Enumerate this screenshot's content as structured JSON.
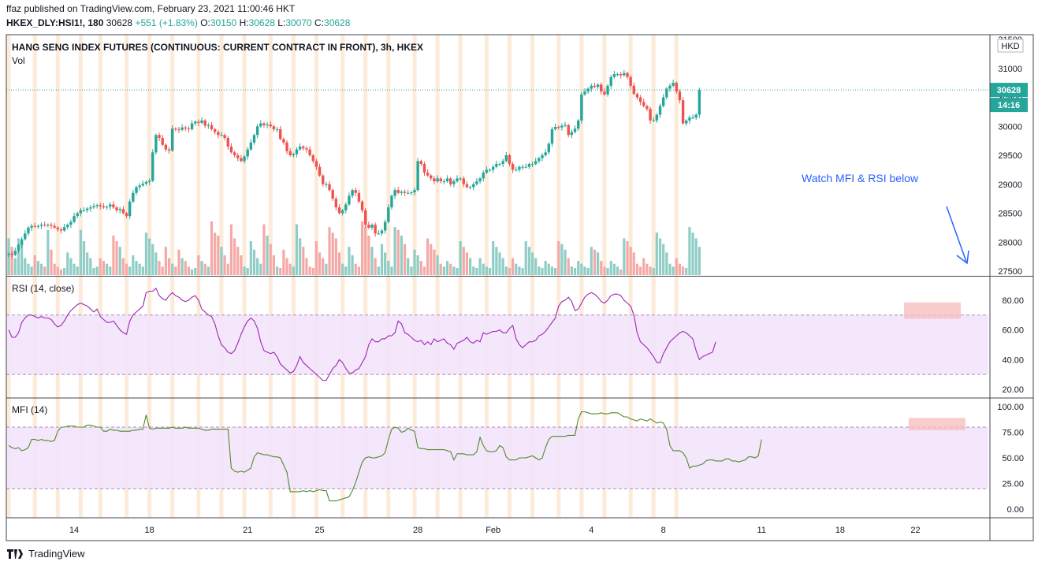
{
  "header": {
    "published_line": "ffaz published on TradingView.com, February 23, 2021 11:00:46 HKT",
    "symbol": "HKEX_DLY:HSI1!, 180",
    "last": "30628",
    "change": "+551 (+1.83%)",
    "o_label": "O:",
    "o": "30150",
    "h_label": "H:",
    "h": "30628",
    "l_label": "L:",
    "l": "30070",
    "c_label": "C:",
    "c": "30628"
  },
  "footer": {
    "brand": "TradingView"
  },
  "colors": {
    "up": "#26a69a",
    "down": "#ef5350",
    "vol_up": "#8fcdc7",
    "vol_down": "#f4a9a7",
    "rsi_line": "#9c27b0",
    "mfi_line": "#4f8a2b",
    "band_fill": "#f2e3fb",
    "session_stripe": "#fde6cf",
    "annotation": "#2962ff",
    "pink_box": "#f7bcbc"
  },
  "chart_data": [
    {
      "type": "candlestick",
      "title": "HANG SENG INDEX FUTURES (CONTINUOUS: CURRENT CONTRACT IN FRONT), 3h, HKEX",
      "volume_label": "Vol",
      "currency": "HKD",
      "ylim": [
        27500,
        31500
      ],
      "y_ticks": [
        "31500",
        "31000",
        "30500",
        "30000",
        "29500",
        "29000",
        "28500",
        "28000",
        "27500"
      ],
      "last_price_label": "30628",
      "countdown_label": "14:16",
      "x_tick_labels": [
        {
          "i": 20,
          "label": "14"
        },
        {
          "i": 43,
          "label": "18"
        },
        {
          "i": 73,
          "label": "21"
        },
        {
          "i": 95,
          "label": "25"
        },
        {
          "i": 125,
          "label": "28"
        },
        {
          "i": 148,
          "label": "Feb"
        },
        {
          "i": 178,
          "label": "4"
        },
        {
          "i": 200,
          "label": "8"
        },
        {
          "i": 230,
          "label": "11"
        },
        {
          "i": 254,
          "label": "18"
        },
        {
          "i": 277,
          "label": "22"
        }
      ],
      "annotation": "Watch MFI & RSI below",
      "closes": [
        27800,
        27780,
        27850,
        27950,
        28050,
        28150,
        28250,
        28280,
        28270,
        28280,
        28300,
        28290,
        28300,
        28280,
        28250,
        28220,
        28200,
        28260,
        28300,
        28350,
        28450,
        28500,
        28550,
        28550,
        28580,
        28600,
        28620,
        28640,
        28620,
        28600,
        28610,
        28650,
        28600,
        28550,
        28570,
        28500,
        28450,
        28700,
        28850,
        28950,
        28980,
        29010,
        29040,
        29060,
        29550,
        29850,
        29800,
        29680,
        29600,
        29580,
        29960,
        29950,
        29940,
        29980,
        29960,
        29950,
        30050,
        30080,
        30060,
        30100,
        30010,
        30020,
        29950,
        29900,
        29850,
        29850,
        29800,
        29650,
        29550,
        29500,
        29450,
        29400,
        29480,
        29600,
        29720,
        29850,
        30000,
        30050,
        30020,
        30030,
        30000,
        29950,
        29950,
        29780,
        29720,
        29570,
        29500,
        29520,
        29600,
        29650,
        29620,
        29600,
        29500,
        29400,
        29300,
        29150,
        29000,
        29000,
        28900,
        28750,
        28600,
        28500,
        28550,
        28650,
        28800,
        28900,
        28850,
        28700,
        28550,
        28300,
        28250,
        28300,
        28150,
        28150,
        28200,
        28350,
        28600,
        28800,
        28900,
        28850,
        28870,
        28850,
        28850,
        28860,
        28900,
        29400,
        29350,
        29200,
        29150,
        29100,
        29050,
        29100,
        29050,
        29050,
        29100,
        29000,
        29050,
        29100,
        29100,
        29000,
        28950,
        28950,
        29000,
        29050,
        29100,
        29200,
        29250,
        29250,
        29300,
        29350,
        29350,
        29400,
        29500,
        29350,
        29250,
        29250,
        29300,
        29300,
        29300,
        29350,
        29350,
        29400,
        29450,
        29500,
        29550,
        29700,
        29950,
        29990,
        29980,
        30010,
        30020,
        29850,
        29900,
        29960,
        30100,
        30550,
        30600,
        30650,
        30700,
        30680,
        30720,
        30600,
        30550,
        30700,
        30850,
        30900,
        30900,
        30880,
        30920,
        30850,
        30700,
        30560,
        30500,
        30420,
        30350,
        30300,
        30100,
        30100,
        30200,
        30350,
        30500,
        30650,
        30700,
        30750,
        30600,
        30450,
        30050,
        30100,
        30150,
        30150,
        30200,
        30628
      ],
      "volumes": [
        0.26,
        0.2,
        0.12,
        0.26,
        0.22,
        0.12,
        0.08,
        0.06,
        0.14,
        0.1,
        0.08,
        0.06,
        0.32,
        0.18,
        0.08,
        0.06,
        0.04,
        0.05,
        0.16,
        0.12,
        0.08,
        0.06,
        0.32,
        0.24,
        0.16,
        0.12,
        0.05,
        0.06,
        0.12,
        0.1,
        0.08,
        0.06,
        0.28,
        0.24,
        0.2,
        0.12,
        0.08,
        0.06,
        0.14,
        0.1,
        0.08,
        0.06,
        0.3,
        0.26,
        0.22,
        0.16,
        0.1,
        0.06,
        0.2,
        0.12,
        0.08,
        0.06,
        0.18,
        0.12,
        0.1,
        0.06,
        0.04,
        0.05,
        0.14,
        0.1,
        0.08,
        0.06,
        0.38,
        0.3,
        0.28,
        0.2,
        0.14,
        0.08,
        0.36,
        0.26,
        0.2,
        0.14,
        0.06,
        0.05,
        0.24,
        0.18,
        0.12,
        0.08,
        0.36,
        0.28,
        0.22,
        0.14,
        0.06,
        0.05,
        0.18,
        0.12,
        0.08,
        0.06,
        0.36,
        0.26,
        0.2,
        0.12,
        0.06,
        0.05,
        0.24,
        0.16,
        0.12,
        0.08,
        0.34,
        0.3,
        0.26,
        0.16,
        0.08,
        0.06,
        0.2,
        0.14,
        0.08,
        0.06,
        0.38,
        0.34,
        0.28,
        0.2,
        0.12,
        0.06,
        0.22,
        0.16,
        0.1,
        0.06,
        0.34,
        0.32,
        0.28,
        0.22,
        0.12,
        0.06,
        0.18,
        0.14,
        0.1,
        0.06,
        0.26,
        0.22,
        0.18,
        0.14,
        0.08,
        0.06,
        0.1,
        0.08,
        0.06,
        0.05,
        0.24,
        0.2,
        0.16,
        0.12,
        0.06,
        0.05,
        0.12,
        0.08,
        0.06,
        0.05,
        0.24,
        0.2,
        0.16,
        0.12,
        0.06,
        0.05,
        0.12,
        0.08,
        0.06,
        0.05,
        0.24,
        0.2,
        0.16,
        0.12,
        0.06,
        0.05,
        0.1,
        0.08,
        0.06,
        0.05,
        0.24,
        0.22,
        0.18,
        0.12,
        0.06,
        0.05,
        0.1,
        0.08,
        0.06,
        0.05,
        0.2,
        0.18,
        0.16,
        0.1,
        0.06,
        0.05,
        0.1,
        0.08,
        0.06,
        0.04,
        0.26,
        0.24,
        0.2,
        0.16,
        0.08,
        0.06,
        0.12,
        0.08,
        0.06,
        0.05,
        0.3,
        0.26,
        0.22,
        0.16,
        0.08,
        0.06,
        0.12,
        0.08,
        0.06,
        0.05,
        0.34,
        0.3,
        0.26,
        0.2,
        0.1,
        0.06,
        0.12,
        0.08,
        0.06,
        0.05,
        0.36,
        0.3,
        0.26,
        0.18,
        0.1,
        0.06,
        0.12,
        0.1,
        0.06,
        0.05,
        0.34,
        0.3,
        0.26,
        0.2,
        0.1,
        0.06,
        0.34
      ],
      "session_stripe_indices": [
        0,
        8,
        15,
        22,
        28,
        36,
        43,
        50,
        58,
        65,
        72,
        80,
        87,
        94,
        102,
        109,
        116,
        124,
        131,
        138,
        146,
        153,
        160,
        168,
        175,
        182,
        190,
        197,
        204,
        212,
        219,
        226,
        234,
        241,
        248,
        256,
        263,
        270,
        278,
        285
      ]
    },
    {
      "type": "line",
      "title": "RSI (14, close)",
      "ylim": [
        20,
        90
      ],
      "y_ticks": [
        "80.00",
        "60.00",
        "40.00",
        "20.00"
      ],
      "band": [
        30,
        70
      ],
      "values": [
        60,
        55,
        55,
        58,
        65,
        68,
        70,
        70,
        69,
        68,
        69,
        68,
        68,
        67,
        64,
        62,
        63,
        66,
        70,
        73,
        75,
        77,
        78,
        77,
        76,
        74,
        72,
        74,
        69,
        67,
        65,
        65,
        66,
        63,
        60,
        58,
        57,
        66,
        70,
        72,
        74,
        76,
        85,
        86,
        86,
        88,
        83,
        81,
        80,
        83,
        85,
        83,
        82,
        80,
        79,
        80,
        82,
        83,
        80,
        74,
        72,
        70,
        69,
        64,
        56,
        50,
        48,
        45,
        44,
        46,
        51,
        57,
        62,
        66,
        68,
        66,
        61,
        52,
        46,
        45,
        44,
        45,
        42,
        37,
        35,
        33,
        31,
        32,
        36,
        42,
        38,
        36,
        34,
        32,
        30,
        28,
        26,
        26,
        30,
        34,
        36,
        40,
        38,
        34,
        31,
        31,
        33,
        34,
        38,
        42,
        50,
        54,
        52,
        52,
        54,
        54,
        56,
        56,
        58,
        66,
        64,
        58,
        57,
        55,
        53,
        52,
        53,
        50,
        52,
        50,
        54,
        52,
        53,
        54,
        51,
        50,
        47,
        51,
        52,
        53,
        55,
        52,
        51,
        53,
        52,
        58,
        57,
        58,
        59,
        59,
        60,
        58,
        58,
        61,
        63,
        54,
        50,
        48,
        50,
        52,
        52,
        53,
        56,
        57,
        59,
        62,
        65,
        68,
        76,
        79,
        80,
        82,
        79,
        73,
        74,
        78,
        82,
        84,
        85,
        84,
        82,
        79,
        78,
        80,
        83,
        84,
        84,
        83,
        80,
        78,
        76,
        70,
        58,
        52,
        50,
        48,
        45,
        42,
        38,
        38,
        44,
        48,
        52,
        54,
        56,
        58,
        59,
        58,
        56,
        54,
        46,
        40,
        42,
        43,
        44,
        45,
        52
      ]
    },
    {
      "type": "line",
      "title": "MFI (14)",
      "ylim": [
        0,
        100
      ],
      "y_ticks": [
        "100.00",
        "75.00",
        "50.00",
        "25.00",
        "0.00"
      ],
      "band": [
        20,
        80
      ],
      "values": [
        62,
        60,
        59,
        60,
        57,
        58,
        60,
        68,
        68,
        67,
        68,
        67,
        67,
        66,
        67,
        76,
        80,
        80,
        81,
        81,
        81,
        80,
        80,
        80,
        82,
        82,
        81,
        80,
        80,
        76,
        76,
        78,
        77,
        77,
        76,
        76,
        76,
        76,
        77,
        77,
        78,
        78,
        92,
        79,
        78,
        79,
        79,
        79,
        79,
        79,
        80,
        79,
        79,
        79,
        80,
        79,
        79,
        79,
        79,
        78,
        77,
        77,
        78,
        78,
        78,
        78,
        78,
        78,
        40,
        37,
        36,
        37,
        36,
        38,
        40,
        51,
        55,
        54,
        53,
        53,
        52,
        51,
        51,
        50,
        43,
        36,
        17,
        17,
        17,
        17,
        18,
        17,
        18,
        17,
        18,
        19,
        18,
        18,
        8,
        8,
        8,
        9,
        10,
        11,
        12,
        18,
        26,
        36,
        46,
        50,
        51,
        50,
        50,
        51,
        52,
        55,
        68,
        78,
        80,
        79,
        75,
        76,
        79,
        77,
        76,
        60,
        59,
        59,
        58,
        58,
        58,
        58,
        58,
        58,
        57,
        56,
        48,
        54,
        54,
        54,
        53,
        53,
        53,
        56,
        70,
        62,
        57,
        56,
        56,
        57,
        62,
        60,
        51,
        48,
        48,
        48,
        50,
        50,
        50,
        51,
        52,
        50,
        48,
        50,
        60,
        68,
        71,
        71,
        71,
        71,
        71,
        72,
        72,
        72,
        88,
        95,
        95,
        94,
        93,
        93,
        93,
        94,
        93,
        93,
        94,
        94,
        94,
        92,
        90,
        90,
        88,
        87,
        86,
        88,
        87,
        86,
        88,
        86,
        84,
        85,
        84,
        78,
        62,
        57,
        57,
        57,
        55,
        50,
        40,
        42,
        42,
        43,
        44,
        47,
        48,
        48,
        47,
        47,
        47,
        49,
        49,
        47,
        47,
        46,
        47,
        48,
        51,
        51,
        50,
        52,
        68
      ]
    }
  ]
}
